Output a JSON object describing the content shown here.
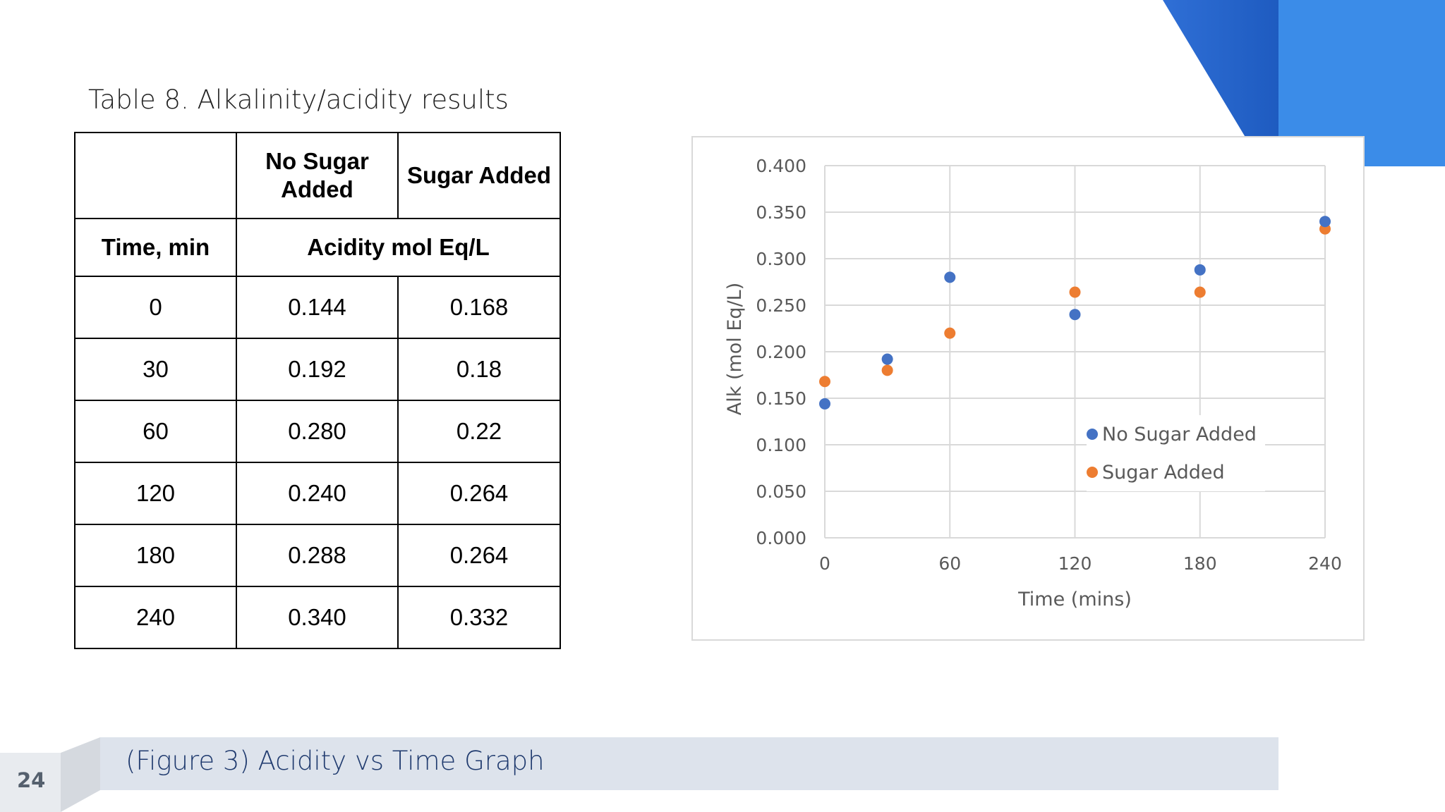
{
  "slide": {
    "table_caption": "Table 8. Alkalinity/acidity results",
    "figure_caption": "(Figure 3) Acidity vs Time Graph",
    "page_number": "24"
  },
  "table": {
    "header_blank": "",
    "col_no_sugar": "No Sugar Added",
    "col_sugar": "Sugar Added",
    "subheader_time": "Time, min",
    "subheader_acidity": "Acidity mol Eq/L",
    "rows": [
      {
        "time": "0",
        "no_sugar": "0.144",
        "sugar": "0.168"
      },
      {
        "time": "30",
        "no_sugar": "0.192",
        "sugar": "0.18"
      },
      {
        "time": "60",
        "no_sugar": "0.280",
        "sugar": "0.22"
      },
      {
        "time": "120",
        "no_sugar": "0.240",
        "sugar": "0.264"
      },
      {
        "time": "180",
        "no_sugar": "0.288",
        "sugar": "0.264"
      },
      {
        "time": "240",
        "no_sugar": "0.340",
        "sugar": "0.332"
      }
    ]
  },
  "chart_data": {
    "type": "scatter",
    "title": "",
    "xlabel": "Time (mins)",
    "ylabel": "Alk (mol Eq/L)",
    "xlim": [
      0,
      240
    ],
    "ylim": [
      0,
      0.4
    ],
    "x_ticks": [
      "0",
      "60",
      "120",
      "180",
      "240"
    ],
    "y_ticks": [
      "0.000",
      "0.050",
      "0.100",
      "0.150",
      "0.200",
      "0.250",
      "0.300",
      "0.350",
      "0.400"
    ],
    "grid": true,
    "legend_position": "lower-right",
    "series": [
      {
        "name": "No Sugar Added",
        "color": "#4472c4",
        "points": [
          {
            "x": 0,
            "y": 0.144
          },
          {
            "x": 30,
            "y": 0.192
          },
          {
            "x": 60,
            "y": 0.28
          },
          {
            "x": 120,
            "y": 0.24
          },
          {
            "x": 180,
            "y": 0.288
          },
          {
            "x": 240,
            "y": 0.34
          }
        ]
      },
      {
        "name": "Sugar Added",
        "color": "#ed7d31",
        "points": [
          {
            "x": 0,
            "y": 0.168
          },
          {
            "x": 30,
            "y": 0.18
          },
          {
            "x": 60,
            "y": 0.22
          },
          {
            "x": 120,
            "y": 0.264
          },
          {
            "x": 180,
            "y": 0.264
          },
          {
            "x": 240,
            "y": 0.332
          }
        ]
      }
    ]
  }
}
